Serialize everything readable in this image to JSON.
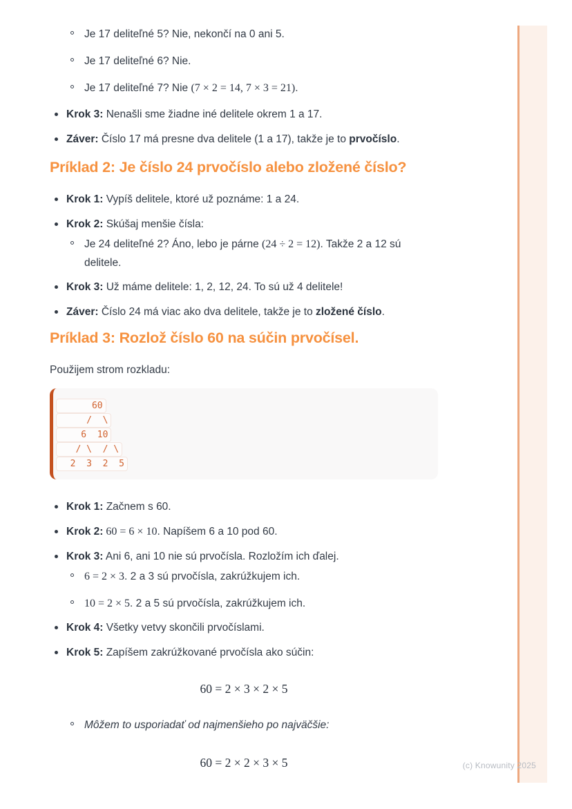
{
  "watermark": "(c) Knowunity 2025",
  "colors": {
    "heading_accent": "#f6913f",
    "body_text": "#323a45",
    "code_accent_bar": "#c4511f",
    "code_text": "#d0602c",
    "side_panel_fill": "#fcf1ea",
    "side_panel_line": "#eda87f",
    "watermark_gray": "#b7bbc2"
  },
  "section1": {
    "sub_items": [
      [
        {
          "c": "t",
          "t": "Je 17 deliteľné 5? Nie, nekončí na 0 ani 5."
        }
      ],
      [
        {
          "c": "t",
          "t": "Je 17 deliteľné 6? Nie."
        }
      ],
      [
        {
          "c": "t",
          "t": "Je 17 deliteľné 7? Nie "
        },
        {
          "c": "m",
          "t": "(7 × 2 = 14, 7 × 3 = 21)"
        },
        {
          "c": "t",
          "t": "."
        }
      ]
    ],
    "items": [
      [
        {
          "c": "b",
          "t": "Krok 3:"
        },
        {
          "c": "t",
          "t": " Nenašli sme žiadne iné delitele okrem 1 a 17."
        }
      ],
      [
        {
          "c": "b",
          "t": "Záver:"
        },
        {
          "c": "t",
          "t": " Číslo 17 má presne dva delitele (1 a 17), takže je to "
        },
        {
          "c": "b",
          "t": "prvočíslo"
        },
        {
          "c": "t",
          "t": "."
        }
      ]
    ]
  },
  "section2": {
    "heading": "Príklad 2: Je číslo 24 prvočíslo alebo zložené číslo?",
    "krok1": [
      {
        "c": "b",
        "t": "Krok 1:"
      },
      {
        "c": "t",
        "t": " Vypíš delitele, ktoré už poznáme: 1 a 24."
      }
    ],
    "krok2": [
      {
        "c": "b",
        "t": "Krok 2:"
      },
      {
        "c": "t",
        "t": " Skúšaj menšie čísla:"
      }
    ],
    "krok2_sub": [
      {
        "c": "t",
        "t": "Je 24 deliteľné 2? Áno, lebo je párne "
      },
      {
        "c": "m",
        "t": "(24 ÷ 2 = 12)"
      },
      {
        "c": "t",
        "t": ". Takže 2 a 12 sú delitele."
      }
    ],
    "krok3": [
      {
        "c": "b",
        "t": "Krok 3:"
      },
      {
        "c": "t",
        "t": " Už máme delitele: 1, 2, 12, 24. To sú už 4 delitele!"
      }
    ],
    "zaver": [
      {
        "c": "b",
        "t": "Záver:"
      },
      {
        "c": "t",
        "t": " Číslo 24 má viac ako dva delitele, takže je to "
      },
      {
        "c": "b",
        "t": "zložené číslo"
      },
      {
        "c": "t",
        "t": "."
      }
    ]
  },
  "section3": {
    "heading": "Príklad 3: Rozlož číslo 60 na súčin prvočísel.",
    "intro": "Použijem strom rozkladu:",
    "tree_lines": [
      "      60",
      "     /  \\",
      "    6  10",
      "   / \\  / \\",
      "  2  3  2  5"
    ],
    "krok1": [
      {
        "c": "b",
        "t": "Krok 1:"
      },
      {
        "c": "t",
        "t": " Začnem s 60."
      }
    ],
    "krok2": [
      {
        "c": "b",
        "t": "Krok 2:"
      },
      {
        "c": "m",
        "t": " 60 = 6 × 10"
      },
      {
        "c": "t",
        "t": ". Napíšem 6 a 10 pod 60."
      }
    ],
    "krok3": [
      {
        "c": "b",
        "t": "Krok 3:"
      },
      {
        "c": "t",
        "t": " Ani 6, ani 10 nie sú prvočísla. Rozložím ich ďalej."
      }
    ],
    "krok3_sub1": [
      {
        "c": "m",
        "t": "6 = 2 × 3"
      },
      {
        "c": "t",
        "t": ". 2 a 3 sú prvočísla, zakrúžkujem ich."
      }
    ],
    "krok3_sub2": [
      {
        "c": "m",
        "t": "10 = 2 × 5"
      },
      {
        "c": "t",
        "t": ". 2 a 5 sú prvočísla, zakrúžkujem ich."
      }
    ],
    "krok4": [
      {
        "c": "b",
        "t": "Krok 4:"
      },
      {
        "c": "t",
        "t": " Všetky vetvy skončili prvočíslami."
      }
    ],
    "krok5": [
      {
        "c": "b",
        "t": "Krok 5:"
      },
      {
        "c": "t",
        "t": " Zapíšem zakrúžkované prvočísla ako súčin:"
      }
    ],
    "eq1": "60 = 2 × 3 × 2 × 5",
    "note": [
      {
        "c": "i",
        "t": "Môžem to usporiadať od najmenšieho po najväčšie:"
      }
    ],
    "eq2": "60 = 2 × 2 × 3 × 5"
  }
}
